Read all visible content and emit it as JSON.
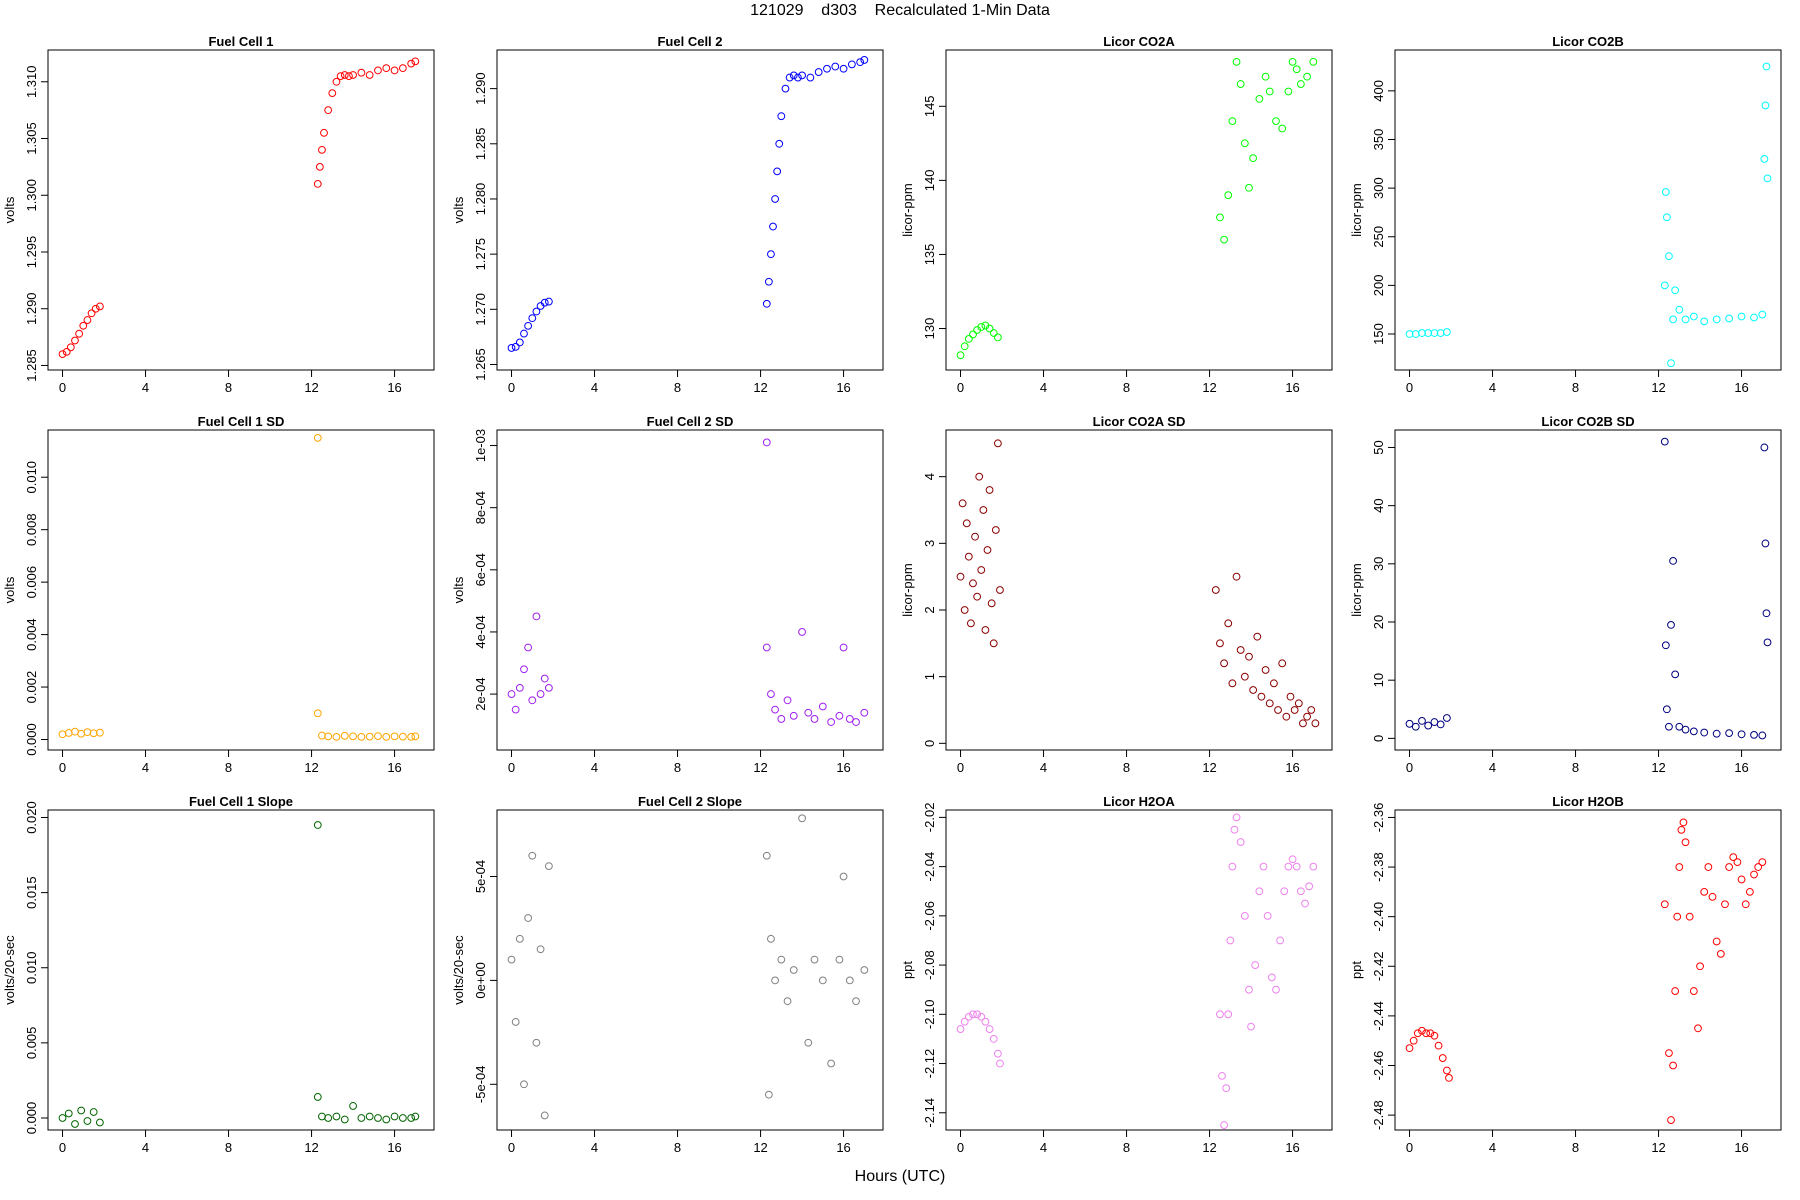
{
  "figure": {
    "title": "121029    d303    Recalculated 1-Min Data",
    "xlabel": "Hours (UTC)"
  },
  "chart_data": [
    {
      "type": "scatter",
      "title": "Fuel Cell 1",
      "ylabel": "volts",
      "color": "#ff0000",
      "xlim": [
        -0.7,
        17.9
      ],
      "ylim": [
        1.2846,
        1.3128
      ],
      "xticks": [
        "0",
        "4",
        "8",
        "12",
        "16"
      ],
      "yticks": [
        "1.285",
        "1.290",
        "1.295",
        "1.300",
        "1.305",
        "1.310"
      ],
      "x": [
        0.0,
        0.2,
        0.4,
        0.6,
        0.8,
        1.0,
        1.2,
        1.4,
        1.6,
        1.8,
        12.3,
        12.4,
        12.5,
        12.6,
        12.8,
        13.0,
        13.2,
        13.4,
        13.6,
        13.8,
        14.0,
        14.4,
        14.8,
        15.2,
        15.6,
        16.0,
        16.4,
        16.8,
        17.0
      ],
      "y": [
        1.286,
        1.2862,
        1.2866,
        1.2872,
        1.2878,
        1.2885,
        1.289,
        1.2896,
        1.29,
        1.2902,
        1.301,
        1.3025,
        1.304,
        1.3055,
        1.3075,
        1.309,
        1.31,
        1.3105,
        1.3106,
        1.3105,
        1.3106,
        1.3108,
        1.3106,
        1.311,
        1.3112,
        1.311,
        1.3112,
        1.3116,
        1.3118
      ]
    },
    {
      "type": "scatter",
      "title": "Fuel Cell 2",
      "ylabel": "volts",
      "color": "#0000ff",
      "xlim": [
        -0.7,
        17.9
      ],
      "ylim": [
        1.2645,
        1.2935
      ],
      "xticks": [
        "0",
        "4",
        "8",
        "12",
        "16"
      ],
      "yticks": [
        "1.265",
        "1.270",
        "1.275",
        "1.280",
        "1.285",
        "1.290"
      ],
      "x": [
        0.0,
        0.2,
        0.4,
        0.6,
        0.8,
        1.0,
        1.2,
        1.4,
        1.6,
        1.8,
        12.3,
        12.4,
        12.5,
        12.6,
        12.7,
        12.8,
        12.9,
        13.0,
        13.2,
        13.4,
        13.6,
        13.8,
        14.0,
        14.4,
        14.8,
        15.2,
        15.6,
        16.0,
        16.4,
        16.8,
        17.0
      ],
      "y": [
        1.2665,
        1.2666,
        1.267,
        1.2678,
        1.2685,
        1.2692,
        1.2698,
        1.2703,
        1.2706,
        1.2707,
        1.2705,
        1.2725,
        1.275,
        1.2775,
        1.28,
        1.2825,
        1.285,
        1.2875,
        1.29,
        1.291,
        1.2912,
        1.291,
        1.2912,
        1.291,
        1.2915,
        1.2918,
        1.292,
        1.2918,
        1.2922,
        1.2924,
        1.2926
      ]
    },
    {
      "type": "scatter",
      "title": "Licor CO2A",
      "ylabel": "licor-ppm",
      "color": "#00ff00",
      "xlim": [
        -0.7,
        17.9
      ],
      "ylim": [
        127.2,
        148.8
      ],
      "xticks": [
        "0",
        "4",
        "8",
        "12",
        "16"
      ],
      "yticks": [
        "130",
        "135",
        "140",
        "145"
      ],
      "x": [
        0.0,
        0.2,
        0.4,
        0.6,
        0.8,
        1.0,
        1.2,
        1.4,
        1.6,
        1.8,
        12.5,
        12.7,
        12.9,
        13.1,
        13.3,
        13.5,
        13.7,
        13.9,
        14.1,
        14.4,
        14.7,
        14.9,
        15.2,
        15.5,
        15.8,
        16.0,
        16.2,
        16.4,
        16.7,
        17.0
      ],
      "y": [
        128.2,
        128.8,
        129.3,
        129.6,
        129.9,
        130.1,
        130.2,
        130.0,
        129.7,
        129.4,
        137.5,
        136.0,
        139.0,
        144.0,
        148.0,
        146.5,
        142.5,
        139.5,
        141.5,
        145.5,
        147.0,
        146.0,
        144.0,
        143.5,
        146.0,
        148.0,
        147.5,
        146.5,
        147.0,
        148.0
      ]
    },
    {
      "type": "scatter",
      "title": "Licor CO2B",
      "ylabel": "licor-ppm",
      "color": "#00ffff",
      "xlim": [
        -0.7,
        17.9
      ],
      "ylim": [
        113,
        442
      ],
      "xticks": [
        "0",
        "4",
        "8",
        "12",
        "16"
      ],
      "yticks": [
        "150",
        "200",
        "250",
        "300",
        "350",
        "400"
      ],
      "x": [
        0.0,
        0.3,
        0.6,
        0.9,
        1.2,
        1.5,
        1.8,
        12.3,
        12.35,
        12.4,
        12.5,
        12.6,
        12.7,
        12.8,
        13.0,
        13.3,
        13.7,
        14.2,
        14.8,
        15.4,
        16.0,
        16.6,
        17.0,
        17.1,
        17.15,
        17.2,
        17.25
      ],
      "y": [
        150,
        150,
        151,
        151,
        151,
        151,
        152,
        200,
        296,
        270,
        230,
        120,
        165,
        195,
        175,
        165,
        168,
        163,
        165,
        166,
        168,
        167,
        170,
        330,
        385,
        425,
        310
      ]
    },
    {
      "type": "scatter",
      "title": "Fuel Cell 1 SD",
      "ylabel": "volts",
      "color": "#ffa500",
      "xlim": [
        -0.7,
        17.9
      ],
      "ylim": [
        -0.0004,
        0.0118
      ],
      "xticks": [
        "0",
        "4",
        "8",
        "12",
        "16"
      ],
      "yticks": [
        "0.000",
        "0.002",
        "0.004",
        "0.006",
        "0.008",
        "0.010"
      ],
      "x": [
        0.0,
        0.3,
        0.6,
        0.9,
        1.2,
        1.5,
        1.8,
        12.3,
        12.3,
        12.5,
        12.8,
        13.2,
        13.6,
        14.0,
        14.4,
        14.8,
        15.2,
        15.6,
        16.0,
        16.4,
        16.8,
        17.0
      ],
      "y": [
        0.0002,
        0.00025,
        0.0003,
        0.00022,
        0.00028,
        0.00024,
        0.00026,
        0.0115,
        0.001,
        0.00015,
        0.00012,
        0.0001,
        0.00014,
        0.00012,
        0.0001,
        0.00011,
        0.00013,
        0.0001,
        0.00012,
        0.00011,
        0.0001,
        0.00012
      ]
    },
    {
      "type": "scatter",
      "title": "Fuel Cell 2 SD",
      "ylabel": "volts",
      "color": "#a020f0",
      "xlim": [
        -0.7,
        17.9
      ],
      "ylim": [
        2e-05,
        0.00105
      ],
      "xticks": [
        "0",
        "4",
        "8",
        "12",
        "16"
      ],
      "yticks": [
        "2e-04",
        "4e-04",
        "6e-04",
        "8e-04",
        "1e-03"
      ],
      "x": [
        0.0,
        0.2,
        0.4,
        0.6,
        0.8,
        1.0,
        1.2,
        1.4,
        1.6,
        1.8,
        12.3,
        12.3,
        12.5,
        12.7,
        13.0,
        13.3,
        13.6,
        14.0,
        14.3,
        14.6,
        15.0,
        15.4,
        15.8,
        16.0,
        16.3,
        16.6,
        17.0
      ],
      "y": [
        0.0002,
        0.00015,
        0.00022,
        0.00028,
        0.00035,
        0.00018,
        0.00045,
        0.0002,
        0.00025,
        0.00022,
        0.00101,
        0.00035,
        0.0002,
        0.00015,
        0.00012,
        0.00018,
        0.00013,
        0.0004,
        0.00014,
        0.00012,
        0.00016,
        0.00011,
        0.00013,
        0.00035,
        0.00012,
        0.00011,
        0.00014
      ]
    },
    {
      "type": "scatter",
      "title": "Licor CO2A SD",
      "ylabel": "licor-ppm",
      "color": "#8b0000",
      "xlim": [
        -0.7,
        17.9
      ],
      "ylim": [
        -0.1,
        4.7
      ],
      "xticks": [
        "0",
        "4",
        "8",
        "12",
        "16"
      ],
      "yticks": [
        "0",
        "1",
        "2",
        "3",
        "4"
      ],
      "x": [
        0.0,
        0.1,
        0.2,
        0.3,
        0.4,
        0.5,
        0.6,
        0.7,
        0.8,
        0.9,
        1.0,
        1.1,
        1.2,
        1.3,
        1.4,
        1.5,
        1.6,
        1.7,
        1.8,
        1.9,
        12.3,
        12.5,
        12.7,
        12.9,
        13.1,
        13.3,
        13.5,
        13.7,
        13.9,
        14.1,
        14.3,
        14.5,
        14.7,
        14.9,
        15.1,
        15.3,
        15.5,
        15.7,
        15.9,
        16.1,
        16.3,
        16.5,
        16.7,
        16.9,
        17.1
      ],
      "y": [
        2.5,
        3.6,
        2.0,
        3.3,
        2.8,
        1.8,
        2.4,
        3.1,
        2.2,
        4.0,
        2.6,
        3.5,
        1.7,
        2.9,
        3.8,
        2.1,
        1.5,
        3.2,
        4.5,
        2.3,
        2.3,
        1.5,
        1.2,
        1.8,
        0.9,
        2.5,
        1.4,
        1.0,
        1.3,
        0.8,
        1.6,
        0.7,
        1.1,
        0.6,
        0.9,
        0.5,
        1.2,
        0.4,
        0.7,
        0.5,
        0.6,
        0.3,
        0.4,
        0.5,
        0.3
      ]
    },
    {
      "type": "scatter",
      "title": "Licor CO2B SD",
      "ylabel": "licor-ppm",
      "color": "#000080",
      "xlim": [
        -0.7,
        17.9
      ],
      "ylim": [
        -2,
        53
      ],
      "xticks": [
        "0",
        "4",
        "8",
        "12",
        "16"
      ],
      "yticks": [
        "0",
        "10",
        "20",
        "30",
        "40",
        "50"
      ],
      "x": [
        0.0,
        0.3,
        0.6,
        0.9,
        1.2,
        1.5,
        1.8,
        12.3,
        12.35,
        12.4,
        12.5,
        12.6,
        12.7,
        12.8,
        13.0,
        13.3,
        13.7,
        14.2,
        14.8,
        15.4,
        16.0,
        16.6,
        17.0,
        17.1,
        17.15,
        17.2,
        17.25
      ],
      "y": [
        2.5,
        2.0,
        3.0,
        2.2,
        2.8,
        2.4,
        3.5,
        51.0,
        16.0,
        5.0,
        2.0,
        19.5,
        30.5,
        11.0,
        2.0,
        1.5,
        1.2,
        1.0,
        0.8,
        0.9,
        0.7,
        0.6,
        0.5,
        50.0,
        33.5,
        21.5,
        16.5
      ]
    },
    {
      "type": "scatter",
      "title": "Fuel Cell 1 Slope",
      "ylabel": "volts/20-sec",
      "color": "#006400",
      "xlim": [
        -0.7,
        17.9
      ],
      "ylim": [
        -0.0008,
        0.0205
      ],
      "xticks": [
        "0",
        "4",
        "8",
        "12",
        "16"
      ],
      "yticks": [
        "0.000",
        "0.005",
        "0.010",
        "0.015",
        "0.020"
      ],
      "x": [
        0.0,
        0.3,
        0.6,
        0.9,
        1.2,
        1.5,
        1.8,
        12.3,
        12.3,
        12.5,
        12.8,
        13.2,
        13.6,
        14.0,
        14.4,
        14.8,
        15.2,
        15.6,
        16.0,
        16.4,
        16.8,
        17.0
      ],
      "y": [
        0.0,
        0.0003,
        -0.0004,
        0.0005,
        -0.0002,
        0.0004,
        -0.0003,
        0.0195,
        0.0014,
        0.0001,
        0.0,
        0.0001,
        -0.0001,
        0.0008,
        0.0,
        0.0001,
        0.0,
        -0.0001,
        0.0001,
        0.0,
        0.0,
        0.0001
      ]
    },
    {
      "type": "scatter",
      "title": "Fuel Cell 2 Slope",
      "ylabel": "volts/20-sec",
      "color": "#808080",
      "xlim": [
        -0.7,
        17.9
      ],
      "ylim": [
        -0.00072,
        0.00082
      ],
      "xticks": [
        "0",
        "4",
        "8",
        "12",
        "16"
      ],
      "yticks": [
        "-5e-04",
        "0e+00",
        "5e-04"
      ],
      "x": [
        0.0,
        0.2,
        0.4,
        0.6,
        0.8,
        1.0,
        1.2,
        1.4,
        1.6,
        1.8,
        12.3,
        12.4,
        12.5,
        12.7,
        13.0,
        13.3,
        13.6,
        14.0,
        14.3,
        14.6,
        15.0,
        15.4,
        15.8,
        16.0,
        16.3,
        16.6,
        17.0
      ],
      "y": [
        0.0001,
        -0.0002,
        0.0002,
        -0.0005,
        0.0003,
        0.0006,
        -0.0003,
        0.00015,
        -0.00065,
        0.00055,
        0.0006,
        -0.00055,
        0.0002,
        0.0,
        0.0001,
        -0.0001,
        5e-05,
        0.00078,
        -0.0003,
        0.0001,
        0.0,
        -0.0004,
        0.0001,
        0.0005,
        0.0,
        -0.0001,
        5e-05
      ]
    },
    {
      "type": "scatter",
      "title": "Licor H2OA",
      "ylabel": "ppt",
      "color": "#ee82ee",
      "xlim": [
        -0.7,
        17.9
      ],
      "ylim": [
        -2.147,
        -2.017
      ],
      "xticks": [
        "0",
        "4",
        "8",
        "12",
        "16"
      ],
      "yticks": [
        "-2.14",
        "-2.12",
        "-2.10",
        "-2.08",
        "-2.06",
        "-2.04",
        "-2.02"
      ],
      "x": [
        0.0,
        0.2,
        0.4,
        0.6,
        0.8,
        1.0,
        1.2,
        1.4,
        1.6,
        1.8,
        1.9,
        12.5,
        12.6,
        12.7,
        12.8,
        12.9,
        13.0,
        13.1,
        13.2,
        13.3,
        13.5,
        13.7,
        13.9,
        14.0,
        14.2,
        14.4,
        14.6,
        14.8,
        15.0,
        15.2,
        15.4,
        15.6,
        15.8,
        16.0,
        16.2,
        16.4,
        16.6,
        16.8,
        17.0
      ],
      "y": [
        -2.106,
        -2.103,
        -2.101,
        -2.1,
        -2.1,
        -2.101,
        -2.103,
        -2.106,
        -2.11,
        -2.116,
        -2.12,
        -2.1,
        -2.125,
        -2.145,
        -2.13,
        -2.1,
        -2.07,
        -2.04,
        -2.025,
        -2.02,
        -2.03,
        -2.06,
        -2.09,
        -2.105,
        -2.08,
        -2.05,
        -2.04,
        -2.06,
        -2.085,
        -2.09,
        -2.07,
        -2.05,
        -2.04,
        -2.037,
        -2.04,
        -2.05,
        -2.055,
        -2.048,
        -2.04
      ]
    },
    {
      "type": "scatter",
      "title": "Licor H2OB",
      "ylabel": "ppt",
      "color": "#ff0000",
      "xlim": [
        -0.7,
        17.9
      ],
      "ylim": [
        -2.486,
        -2.357
      ],
      "xticks": [
        "0",
        "4",
        "8",
        "12",
        "16"
      ],
      "yticks": [
        "-2.48",
        "-2.46",
        "-2.44",
        "-2.42",
        "-2.40",
        "-2.38",
        "-2.36"
      ],
      "x": [
        0.0,
        0.2,
        0.4,
        0.6,
        0.8,
        1.0,
        1.2,
        1.4,
        1.6,
        1.8,
        1.9,
        12.3,
        12.5,
        12.6,
        12.7,
        12.8,
        12.9,
        13.0,
        13.1,
        13.2,
        13.3,
        13.5,
        13.7,
        13.9,
        14.0,
        14.2,
        14.4,
        14.6,
        14.8,
        15.0,
        15.2,
        15.4,
        15.6,
        15.8,
        16.0,
        16.2,
        16.4,
        16.6,
        16.8,
        17.0
      ],
      "y": [
        -2.453,
        -2.45,
        -2.447,
        -2.446,
        -2.447,
        -2.447,
        -2.448,
        -2.452,
        -2.457,
        -2.462,
        -2.465,
        -2.395,
        -2.455,
        -2.482,
        -2.46,
        -2.43,
        -2.4,
        -2.38,
        -2.365,
        -2.362,
        -2.37,
        -2.4,
        -2.43,
        -2.445,
        -2.42,
        -2.39,
        -2.38,
        -2.392,
        -2.41,
        -2.415,
        -2.395,
        -2.38,
        -2.376,
        -2.378,
        -2.385,
        -2.395,
        -2.39,
        -2.383,
        -2.38,
        -2.378
      ]
    }
  ]
}
